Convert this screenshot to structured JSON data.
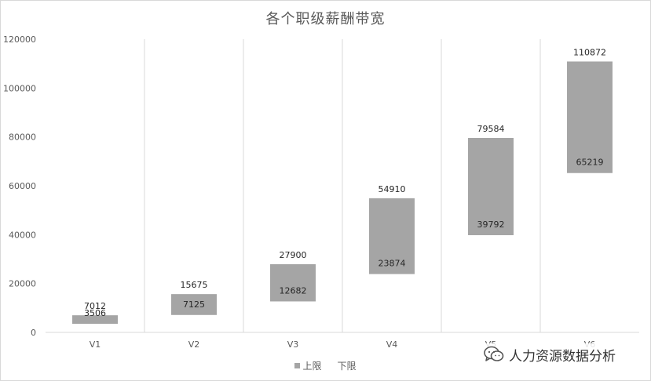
{
  "chart_data": {
    "type": "bar",
    "subtype": "floating-range",
    "title": "各个职级薪酬带宽",
    "categories": [
      "V1",
      "V2",
      "V3",
      "V4",
      "V5",
      "V6"
    ],
    "series": [
      {
        "name": "上限",
        "values": [
          7012,
          15675,
          27900,
          54910,
          79584,
          110872
        ],
        "color": "#a5a5a5"
      },
      {
        "name": "下限",
        "values": [
          3506,
          7125,
          12682,
          23874,
          39792,
          65219
        ],
        "color": "#ffffff"
      }
    ],
    "ylim": [
      0,
      120000
    ],
    "yticks": [
      "0",
      "20000",
      "40000",
      "60000",
      "80000",
      "100000",
      "120000"
    ],
    "grid": "vertical",
    "legend": "bottom"
  },
  "colors": {
    "bar": "#a5a5a5",
    "grid": "#d9d9d9",
    "text": "#595959"
  },
  "watermark": {
    "text": "人力资源数据分析",
    "icon": "wechat-icon"
  }
}
